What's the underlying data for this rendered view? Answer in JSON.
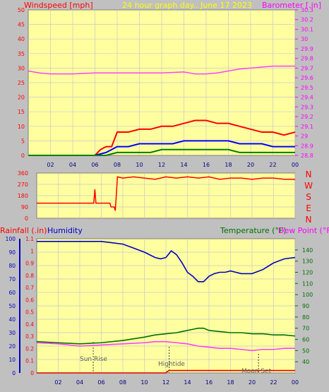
{
  "header": {
    "left_title": "Windspeed [mph]",
    "center_title": "24 hour graph day.. June 17 2023",
    "right_title": "Barometer [.in]"
  },
  "bottom_header": {
    "rainfall": "Rainfall (.in)",
    "humidity": "Humidity",
    "temperature": "Temperature (°F)",
    "dewpoint": "Dew Point (°F)"
  },
  "direction_labels": [
    "N",
    "W",
    "S",
    "E",
    "N"
  ],
  "annotations": {
    "sunrise": "Sun Rise",
    "hightide": "Hightide",
    "moonset": "Moon Set"
  },
  "colors": {
    "plot_bg": "#ffffa0",
    "grid": "#c8c8c8",
    "wind_gust": "#ff0000",
    "wind_avg": "#0000ff",
    "wind_low": "#008000",
    "barometer": "#ff40ff",
    "direction": "#ff0000",
    "humidity": "#0000c0",
    "temperature": "#007000",
    "dewpoint": "#ff40ff",
    "rain": "#e00000",
    "red_text": "#ff0000",
    "yellow_text": "#ffff00",
    "blue_text": "#0000c0",
    "green_text": "#007000",
    "magenta_text": "#ff00ff"
  },
  "chart_data": [
    {
      "type": "line",
      "x_ticks": [
        "02",
        "04",
        "06",
        "08",
        "10",
        "12",
        "14",
        "16",
        "18",
        "20",
        "22",
        "00"
      ],
      "left_axis": {
        "label": "Windspeed [mph]",
        "ticks": [
          0,
          5,
          10,
          15,
          20,
          25,
          30,
          35,
          40,
          45,
          50
        ],
        "range": [
          0,
          50
        ]
      },
      "right_axis": {
        "label": "Barometer [.in]",
        "ticks": [
          "28.8",
          "28.9",
          "29",
          "29.1",
          "29.2",
          "29.3",
          "29.4",
          "29.5",
          "29.6",
          "29.7",
          "29.8",
          "29.9",
          "30",
          "30.1",
          "30.2",
          "30.3"
        ],
        "range": [
          28.8,
          30.3
        ]
      },
      "series": [
        {
          "name": "Barometer [.in]",
          "axis": "right",
          "x": [
            0,
            1,
            2,
            3,
            4,
            6,
            8,
            10,
            12,
            14,
            15,
            16,
            17,
            18,
            19,
            20,
            21,
            22,
            23,
            24
          ],
          "values": [
            29.67,
            29.65,
            29.64,
            29.64,
            29.64,
            29.65,
            29.65,
            29.65,
            29.65,
            29.66,
            29.64,
            29.64,
            29.65,
            29.67,
            29.69,
            29.7,
            29.71,
            29.72,
            29.72,
            29.72
          ]
        },
        {
          "axis": "left",
          "x": [
            0,
            6,
            6.5,
            7,
            7.5,
            8,
            9,
            10,
            11,
            12,
            13,
            14,
            15,
            16,
            17,
            18,
            19,
            20,
            21,
            22,
            23,
            24
          ],
          "values": [
            0,
            0,
            2,
            3,
            3,
            8,
            8,
            9,
            9,
            10,
            10,
            11,
            12,
            12,
            11,
            11,
            10,
            9,
            8,
            8,
            7,
            8
          ]
        },
        {
          "axis": "left",
          "x": [
            0,
            6,
            7,
            8,
            9,
            10,
            11,
            12,
            13,
            14,
            15,
            16,
            17,
            18,
            19,
            20,
            21,
            22,
            23,
            24
          ],
          "values": [
            0,
            0,
            1,
            3,
            3,
            4,
            4,
            4,
            4,
            5,
            5,
            5,
            5,
            5,
            4,
            4,
            4,
            3,
            3,
            3
          ]
        },
        {
          "axis": "left",
          "x": [
            0,
            6,
            7,
            8,
            9,
            10,
            11,
            12,
            13,
            14,
            15,
            16,
            17,
            18,
            19,
            20,
            21,
            22,
            23,
            24
          ],
          "values": [
            0,
            0,
            0,
            1,
            1,
            1,
            1,
            2,
            2,
            2,
            2,
            2,
            2,
            2,
            1,
            1,
            1,
            1,
            1,
            1
          ]
        }
      ]
    },
    {
      "type": "line",
      "x_ticks": [],
      "left_axis": {
        "ticks": [
          0,
          90,
          180,
          270,
          360
        ],
        "range": [
          0,
          360
        ]
      },
      "series": [
        {
          "axis": "left",
          "x": [
            0,
            5.3,
            5.4,
            5.5,
            5.6,
            6,
            6.8,
            6.9,
            7.2,
            7.3,
            7.5,
            8,
            9,
            10,
            11,
            12,
            13,
            14,
            15,
            16,
            17,
            18,
            19,
            20,
            21,
            22,
            23,
            24
          ],
          "values": [
            120,
            120,
            230,
            120,
            120,
            120,
            120,
            90,
            90,
            60,
            330,
            320,
            330,
            320,
            310,
            330,
            320,
            330,
            320,
            330,
            310,
            320,
            320,
            310,
            320,
            320,
            310,
            310
          ]
        }
      ]
    },
    {
      "type": "line",
      "x_ticks": [
        "02",
        "04",
        "06",
        "08",
        "10",
        "12",
        "14",
        "16",
        "18",
        "20",
        "22",
        "00"
      ],
      "left_axis": {
        "label": "Humidity",
        "ticks": [
          0,
          10,
          20,
          30,
          40,
          50,
          60,
          70,
          80,
          90,
          100
        ],
        "range": [
          0,
          100
        ]
      },
      "rain_axis": {
        "label": "Rainfall (.in)",
        "ticks": [
          "0",
          "0.1",
          "0.2",
          "0.3",
          "0.4",
          "0.5",
          "0.6",
          "0.7",
          "0.8",
          "0.9",
          "1",
          "1.1"
        ],
        "range": [
          0,
          1.1
        ]
      },
      "right_axis": {
        "label": "Temperature (°F)",
        "ticks": [
          40,
          50,
          60,
          70,
          80,
          90,
          100,
          110,
          120,
          130,
          140
        ],
        "range": [
          30,
          150
        ]
      },
      "series": [
        {
          "name": "Humidity",
          "axis": "left",
          "x": [
            0,
            2,
            4,
            6,
            7,
            8,
            9,
            10,
            11,
            11.5,
            12,
            12.5,
            13,
            13.5,
            14,
            14.5,
            15,
            15.5,
            16,
            16.5,
            17,
            17.5,
            18,
            19,
            20,
            21,
            22,
            23,
            24
          ],
          "values": [
            98,
            98,
            98,
            98,
            97,
            96,
            93,
            90,
            86,
            85,
            86,
            91,
            88,
            82,
            75,
            72,
            68,
            68,
            72,
            74,
            75,
            75,
            76,
            74,
            74,
            77,
            82,
            85,
            86
          ]
        },
        {
          "name": "Temperature (°F)",
          "axis": "right",
          "x": [
            0,
            2,
            4,
            6,
            8,
            10,
            11,
            12,
            13,
            14,
            14.5,
            15,
            15.5,
            16,
            17,
            18,
            19,
            20,
            21,
            22,
            23,
            24
          ],
          "values": [
            58,
            57,
            56,
            57,
            59,
            62,
            64,
            65,
            66,
            68,
            69,
            70,
            70,
            68,
            67,
            66,
            66,
            65,
            65,
            64,
            64,
            63
          ]
        },
        {
          "name": "Dew Point (°F)",
          "axis": "right",
          "x": [
            0,
            2,
            4,
            6,
            8,
            10,
            11,
            12,
            13,
            14,
            15,
            16,
            17,
            18,
            19,
            20,
            21,
            22,
            23,
            24
          ],
          "values": [
            57,
            56,
            54,
            55,
            56,
            57,
            58,
            58,
            57,
            56,
            54,
            53,
            52,
            52,
            51,
            50,
            51,
            51,
            52,
            52
          ]
        },
        {
          "name": "Rainfall (.in)",
          "axis": "rain",
          "x": [
            0,
            12,
            12.1,
            12.3,
            24
          ],
          "values": [
            0,
            0,
            0.01,
            0.02,
            0.02
          ]
        }
      ]
    }
  ]
}
